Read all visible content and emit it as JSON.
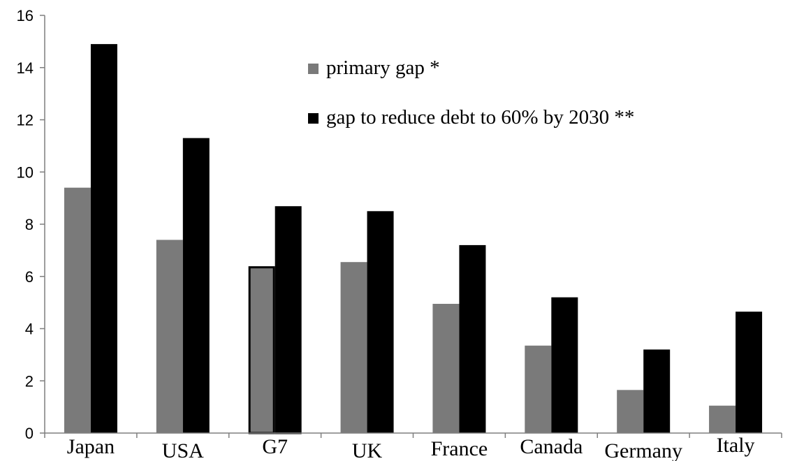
{
  "chart_data": {
    "type": "bar",
    "categories": [
      "Japan",
      "USA",
      "G7",
      "UK",
      "France",
      "Canada",
      "Germany",
      "Italy"
    ],
    "series": [
      {
        "name": "primary gap *",
        "color": "#7a7a7a",
        "values": [
          9.4,
          7.4,
          6.35,
          6.55,
          4.95,
          3.35,
          1.65,
          1.05
        ]
      },
      {
        "name": "gap to reduce debt to 60% by 2030 **",
        "color": "#000000",
        "values": [
          14.9,
          11.3,
          8.65,
          8.5,
          7.2,
          5.2,
          3.2,
          4.65
        ]
      }
    ],
    "highlighted_category": "G7",
    "ylim": [
      0,
      16
    ],
    "yticks": [
      "0",
      "2",
      "4",
      "6",
      "8",
      "10",
      "12",
      "14",
      "16"
    ],
    "xlabel": "",
    "ylabel": "",
    "title": "",
    "grid": false,
    "legend_position": "top-center"
  }
}
